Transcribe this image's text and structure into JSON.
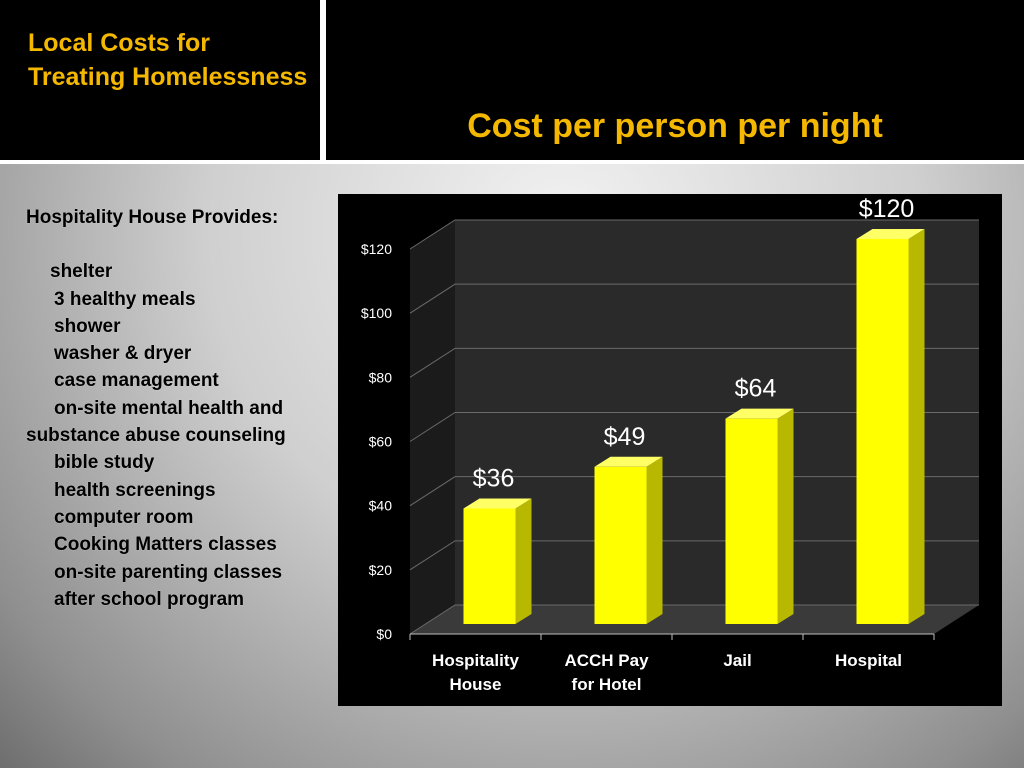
{
  "header": {
    "section_title": "Local Costs for Treating Homelessness",
    "slide_title": "Cost per person per night"
  },
  "services": {
    "heading": "Hospitality House Provides:",
    "items": [
      "shelter",
      "3 healthy meals",
      "shower",
      "washer & dryer",
      "case management",
      "on-site mental health and substance abuse counseling",
      "bible study",
      "health screenings",
      "computer room",
      "Cooking Matters classes",
      "on-site parenting classes",
      "after school program"
    ]
  },
  "colors": {
    "title": "#f5b800",
    "bar": "#ffff00",
    "chart_background": "#000000"
  },
  "chart_data": {
    "type": "bar",
    "categories": [
      "Hospitality House",
      "ACCH Pay for Hotel",
      "Jail",
      "Hospital"
    ],
    "values": [
      36,
      49,
      64,
      120
    ],
    "data_labels": [
      "$36",
      "$49",
      "$64",
      "$120"
    ],
    "ylim": [
      0,
      120
    ],
    "yticks": [
      0,
      20,
      40,
      60,
      80,
      100,
      120
    ],
    "ytick_labels": [
      "$0",
      "$20",
      "$40",
      "$60",
      "$80",
      "$100",
      "$120"
    ],
    "grid": true,
    "style": "3d"
  }
}
